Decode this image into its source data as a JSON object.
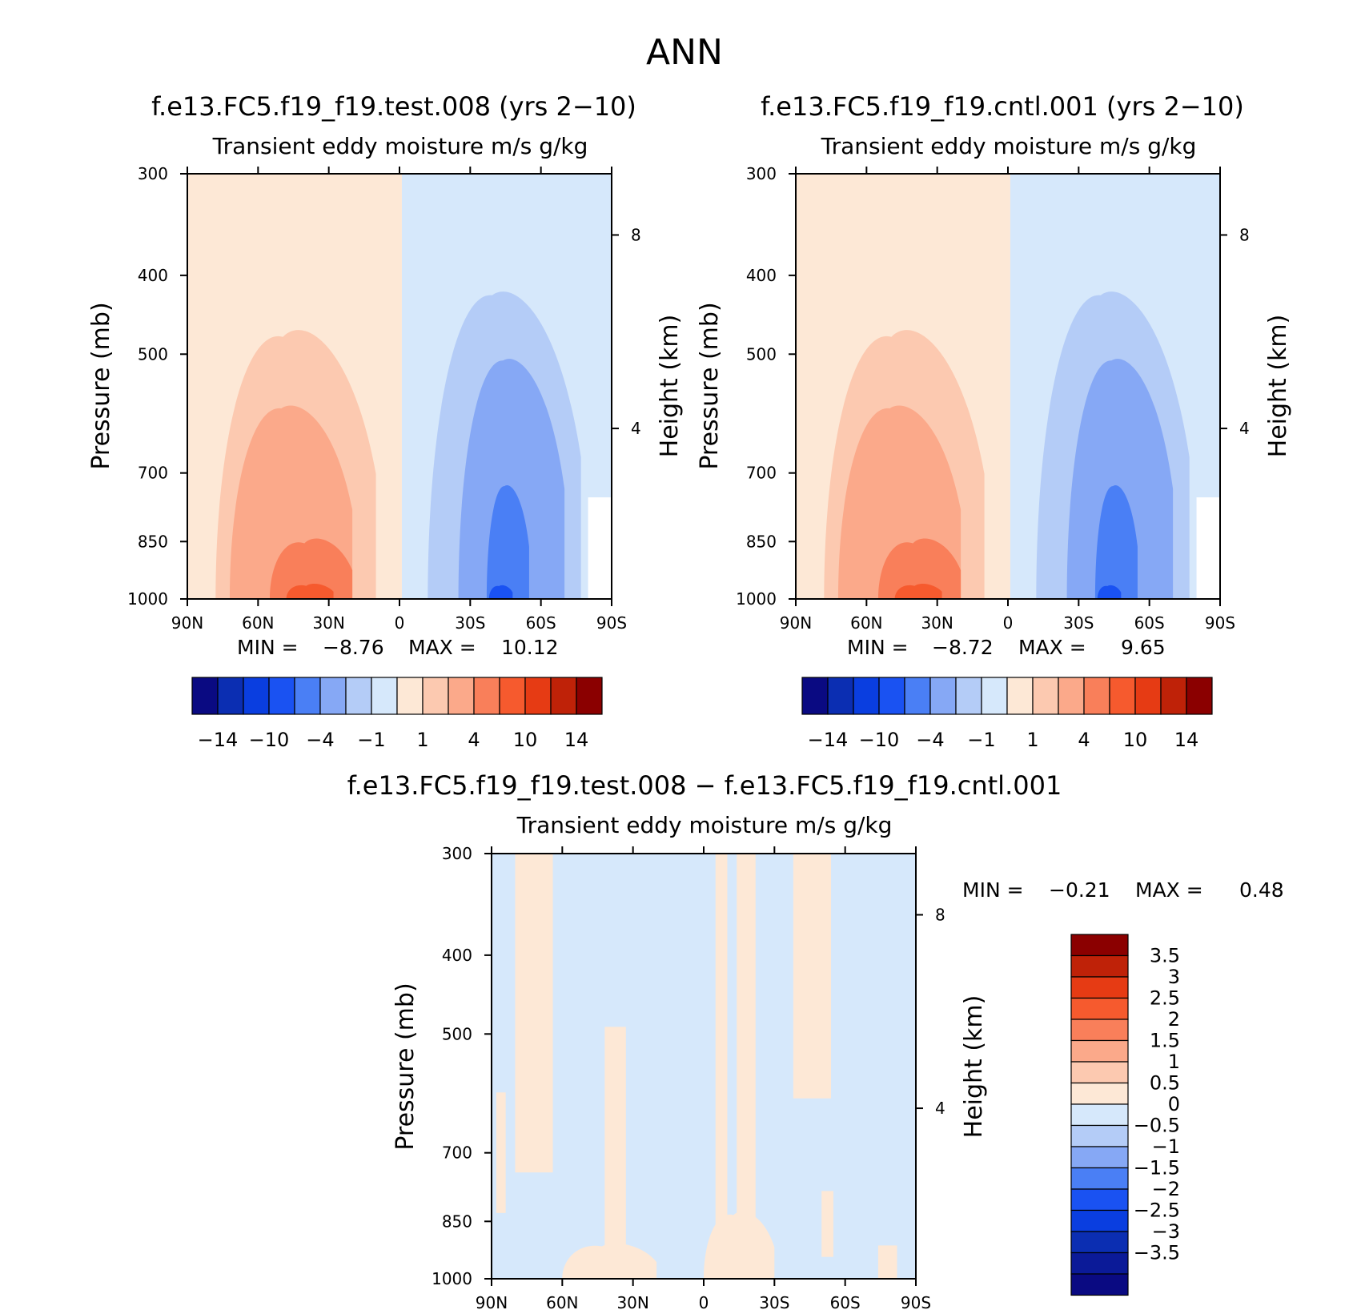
{
  "figure": {
    "title": "ANN"
  },
  "colors": {
    "cmap16": [
      "#0a0a82",
      "#0b2eb2",
      "#0a3ee0",
      "#1a52f2",
      "#4a7ff5",
      "#86a8f5",
      "#b4ccf7",
      "#d6e8fb",
      "#fde8d6",
      "#fcc9b0",
      "#fba98a",
      "#f97f5a",
      "#f65a2e",
      "#e63b14",
      "#bf2208",
      "#8b0000"
    ],
    "cmap17": [
      "#0a0a82",
      "#0b1a98",
      "#0b2eb2",
      "#0a3ee0",
      "#1a52f2",
      "#4a7ff5",
      "#86a8f5",
      "#b4ccf7",
      "#d6e8fb",
      "#fde8d6",
      "#fcc9b0",
      "#fba98a",
      "#f97f5a",
      "#f65a2e",
      "#e63b14",
      "#bf2208",
      "#8b0000"
    ]
  },
  "chart_data": [
    {
      "type": "contour",
      "title": "f.e13.FC5.f19_f19.test.008 (yrs 2−10)",
      "subtitle": "Transient eddy moisture m/s g/kg",
      "ylabel": "Pressure (mb)",
      "ylabel_right": "Height (km)",
      "x_ticks": [
        "90N",
        "60N",
        "30N",
        "0",
        "30S",
        "60S",
        "90S"
      ],
      "y_ticks": [
        "300",
        "400",
        "500",
        "700",
        "850",
        "1000"
      ],
      "right_ticks": [
        "8",
        "4"
      ],
      "stats": {
        "min_label": "MIN =",
        "min": "−8.76",
        "max_label": "MAX =",
        "max": "10.12"
      },
      "colorbar_labels": [
        "−14",
        "−10",
        "−4",
        "−1",
        "1",
        "4",
        "10",
        "14"
      ]
    },
    {
      "type": "contour",
      "title": "f.e13.FC5.f19_f19.cntl.001 (yrs 2−10)",
      "subtitle": "Transient eddy moisture m/s g/kg",
      "ylabel": "Pressure (mb)",
      "ylabel_right": "Height (km)",
      "x_ticks": [
        "90N",
        "60N",
        "30N",
        "0",
        "30S",
        "60S",
        "90S"
      ],
      "y_ticks": [
        "300",
        "400",
        "500",
        "700",
        "850",
        "1000"
      ],
      "right_ticks": [
        "8",
        "4"
      ],
      "stats": {
        "min_label": "MIN =",
        "min": "−8.72",
        "max_label": "MAX =",
        "max": "9.65"
      },
      "colorbar_labels": [
        "−14",
        "−10",
        "−4",
        "−1",
        "1",
        "4",
        "10",
        "14"
      ]
    },
    {
      "type": "contour",
      "title": "f.e13.FC5.f19_f19.test.008 − f.e13.FC5.f19_f19.cntl.001",
      "subtitle": "Transient eddy moisture m/s g/kg",
      "ylabel": "Pressure (mb)",
      "ylabel_right": "Height (km)",
      "x_ticks": [
        "90N",
        "60N",
        "30N",
        "0",
        "30S",
        "60S",
        "90S"
      ],
      "y_ticks": [
        "300",
        "400",
        "500",
        "700",
        "850",
        "1000"
      ],
      "right_ticks": [
        "8",
        "4"
      ],
      "stats": {
        "min_label": "MIN =",
        "min": "−0.21",
        "max_label": "MAX =",
        "max": "0.48"
      },
      "colorbar_labels": [
        "3.5",
        "3",
        "2.5",
        "2",
        "1.5",
        "1",
        "0.5",
        "0",
        "−0.5",
        "−1",
        "−1.5",
        "−2",
        "−2.5",
        "−3",
        "−3.5"
      ]
    }
  ]
}
